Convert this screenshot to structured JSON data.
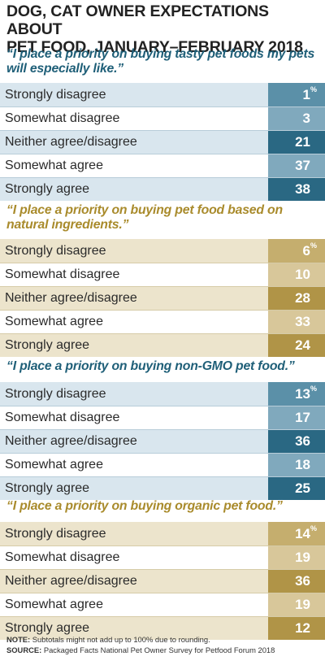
{
  "title_line1": "DOG, CAT OWNER EXPECTATIONS ABOUT",
  "title_line2": "PET FOOD, JANUARY–FEBRUARY 2018",
  "note_label": "NOTE:",
  "note_text": "Subtotals might not add up to 100% due to rounding.",
  "source_label": "SOURCE:",
  "source_text": "Packaged Facts National Pet Owner Survey for Petfood Forum 2018",
  "colors": {
    "blue_row": "#d9e6ee",
    "blue_row_alt": "#ffffff",
    "blue_cells": [
      "#5b90a8",
      "#80a9bd",
      "#2a6883",
      "#80a9bd",
      "#2a6883"
    ],
    "blue_quote": "#1f5f78",
    "gold_row": "#ece4cc",
    "gold_row_alt": "#ffffff",
    "gold_cells": [
      "#c5ae6e",
      "#d8c79a",
      "#b09447",
      "#d8c79a",
      "#b09447"
    ],
    "gold_quote": "#a98b2c"
  },
  "chart_data": [
    {
      "type": "table",
      "theme": "blue",
      "title_line1": "“I place a priority on buying tasty pet foods my pets",
      "title_line2": "will especially like.”",
      "categories": [
        "Strongly disagree",
        "Somewhat disagree",
        "Neither agree/disagree",
        "Somewhat agree",
        "Strongly agree"
      ],
      "values": [
        1,
        3,
        21,
        37,
        38
      ],
      "unit": "%"
    },
    {
      "type": "table",
      "theme": "gold",
      "title_line1": "“I place a priority on buying pet food based on",
      "title_line2": "natural ingredients.”",
      "categories": [
        "Strongly disagree",
        "Somewhat disagree",
        "Neither agree/disagree",
        "Somewhat agree",
        "Strongly agree"
      ],
      "values": [
        6,
        10,
        28,
        33,
        24
      ],
      "unit": "%"
    },
    {
      "type": "table",
      "theme": "blue",
      "title_line1": "“I place a priority on buying non-GMO pet food.”",
      "title_line2": "",
      "categories": [
        "Strongly disagree",
        "Somewhat disagree",
        "Neither agree/disagree",
        "Somewhat agree",
        "Strongly agree"
      ],
      "values": [
        13,
        17,
        36,
        18,
        25
      ],
      "unit": "%"
    },
    {
      "type": "table",
      "theme": "gold",
      "title_line1": "“I place a priority on buying organic pet food.”",
      "title_line2": "",
      "categories": [
        "Strongly disagree",
        "Somewhat disagree",
        "Neither agree/disagree",
        "Somewhat agree",
        "Strongly agree"
      ],
      "values": [
        14,
        19,
        36,
        19,
        12
      ],
      "unit": "%"
    }
  ]
}
